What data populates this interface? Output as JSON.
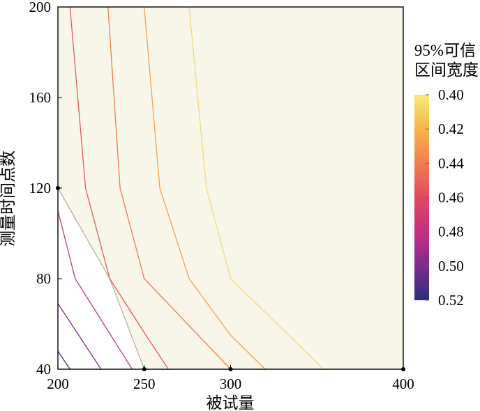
{
  "chart_data": {
    "type": "contour",
    "title": "",
    "xlabel": "被试量",
    "ylabel": "测量时间点数",
    "x_ticks": [
      200,
      250,
      300,
      400
    ],
    "y_ticks": [
      40,
      80,
      120,
      160,
      200
    ],
    "xlim": [
      200,
      400
    ],
    "ylim": [
      40,
      200
    ],
    "grid": false,
    "plot_background": "#f8f5e9",
    "sample_points": [
      [
        200,
        120
      ],
      [
        250,
        40
      ],
      [
        300,
        40
      ],
      [
        400,
        40
      ]
    ],
    "contours": [
      {
        "level": 0.52,
        "color": "#3b2f80",
        "points": [
          [
            200,
            48
          ],
          [
            207,
            40
          ]
        ]
      },
      {
        "level": 0.5,
        "color": "#7c2b8e",
        "points": [
          [
            200,
            69
          ],
          [
            225,
            40
          ]
        ]
      },
      {
        "level": 0.48,
        "color": "#d1337a",
        "points": [
          [
            200,
            110
          ],
          [
            210,
            80
          ],
          [
            243,
            40
          ]
        ]
      },
      {
        "level": 0.47,
        "color": "#b8afa6",
        "points": [
          [
            200,
            120
          ],
          [
            230,
            80
          ],
          [
            250,
            40
          ]
        ]
      },
      {
        "level": 0.46,
        "color": "#e6595a",
        "points": [
          [
            207,
            200
          ],
          [
            216,
            120
          ],
          [
            230,
            80
          ],
          [
            251,
            55
          ],
          [
            264,
            40
          ]
        ]
      },
      {
        "level": 0.44,
        "color": "#ef7d4f",
        "points": [
          [
            229,
            200
          ],
          [
            236,
            120
          ],
          [
            250,
            80
          ],
          [
            300,
            40
          ]
        ]
      },
      {
        "level": 0.42,
        "color": "#f5a04a",
        "points": [
          [
            250,
            200
          ],
          [
            259,
            120
          ],
          [
            276,
            80
          ],
          [
            300,
            55
          ],
          [
            320,
            40
          ]
        ]
      },
      {
        "level": 0.4,
        "color": "#efdc7c",
        "points": [
          [
            276,
            200
          ],
          [
            286,
            120
          ],
          [
            300,
            80
          ],
          [
            354,
            40
          ]
        ]
      }
    ],
    "colorbar": {
      "title": [
        "95%可信",
        "区间宽度"
      ],
      "ticks": [
        "0.40",
        "0.42",
        "0.44",
        "0.46",
        "0.48",
        "0.50",
        "0.52"
      ],
      "min": 0.4,
      "max": 0.52,
      "stops": [
        "#f5ea7a",
        "#f7b44c",
        "#ef7e50",
        "#e1475e",
        "#c7307f",
        "#7c2b8e",
        "#2c2f79"
      ]
    }
  }
}
